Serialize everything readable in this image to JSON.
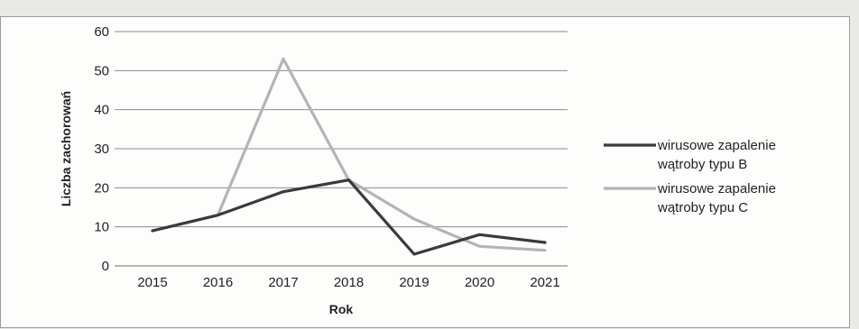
{
  "chart_data": {
    "type": "line",
    "title": "",
    "xlabel": "Rok",
    "ylabel": "Liczba zachorowań",
    "categories": [
      "2015",
      "2016",
      "2017",
      "2018",
      "2019",
      "2020",
      "2021"
    ],
    "ylim": [
      0,
      60
    ],
    "yticks": [
      0,
      10,
      20,
      30,
      40,
      50,
      60
    ],
    "grid": true,
    "legend_position": "right",
    "series": [
      {
        "name": "wirusowe zapalenie wątroby typu B",
        "legend_lines": [
          "wirusowe zapalenie",
          "wątroby typu B"
        ],
        "color": "#3a3a3a",
        "values": [
          9,
          13,
          19,
          22,
          3,
          8,
          6
        ]
      },
      {
        "name": "wirusowe zapalenie wątroby typu C",
        "legend_lines": [
          "wirusowe zapalenie",
          "wątroby typu C"
        ],
        "color": "#b4b4b4",
        "values": [
          9,
          13,
          53,
          22,
          12,
          5,
          4
        ]
      }
    ]
  }
}
